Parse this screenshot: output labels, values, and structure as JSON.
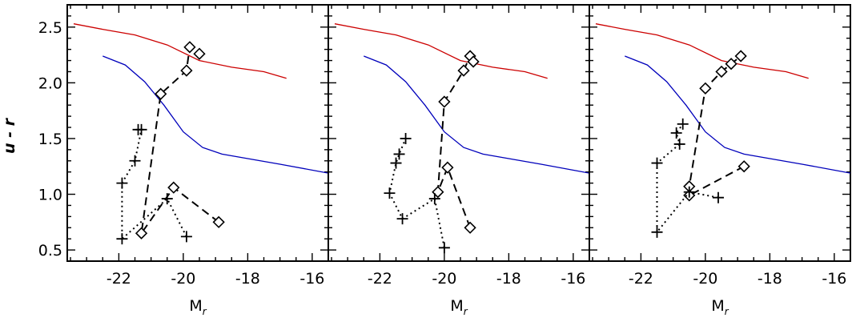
{
  "chart_data": [
    {
      "type": "line",
      "panel": "left",
      "xlabel": "M",
      "xlabel_sub": "r",
      "ylabel": "u - r",
      "xlim": [
        -23.6,
        -15.5
      ],
      "ylim": [
        0.4,
        2.7
      ],
      "xticks": [
        "-22",
        "-20",
        "-18",
        "-16"
      ],
      "xtick_values": [
        -22,
        -20,
        -18,
        -16
      ],
      "yticks": [
        "0.5",
        "1.0",
        "1.5",
        "2.0",
        "2.5"
      ],
      "ytick_values": [
        0.5,
        1.0,
        1.5,
        2.0,
        2.5
      ],
      "curves": [
        {
          "color": "#cc0000",
          "x": [
            -23.4,
            -22.5,
            -21.5,
            -20.5,
            -19.5,
            -18.5,
            -17.5,
            -16.8
          ],
          "y": [
            2.53,
            2.48,
            2.43,
            2.34,
            2.2,
            2.14,
            2.1,
            2.04
          ]
        },
        {
          "color": "#0000bb",
          "x": [
            -22.5,
            -21.8,
            -21.2,
            -20.6,
            -20.0,
            -19.4,
            -18.8,
            -18.0,
            -17.0,
            -15.5
          ],
          "y": [
            2.24,
            2.16,
            2.01,
            1.8,
            1.56,
            1.42,
            1.36,
            1.32,
            1.27,
            1.19
          ]
        }
      ],
      "series": [
        {
          "style": "dashed",
          "marker": "diamond",
          "x": [
            -18.9,
            -20.3,
            -21.3,
            -20.7,
            -19.9,
            -19.8,
            -19.5
          ],
          "y": [
            0.75,
            1.06,
            0.65,
            1.9,
            2.11,
            2.32,
            2.26
          ]
        },
        {
          "style": "dotted",
          "marker": "plus",
          "x": [
            -19.9,
            -20.5,
            -21.9,
            -21.9,
            -21.5,
            -21.3,
            -21.4
          ],
          "y": [
            0.62,
            0.96,
            0.6,
            1.1,
            1.3,
            1.58,
            1.58
          ]
        }
      ]
    },
    {
      "type": "line",
      "panel": "middle",
      "xlabel": "M",
      "xlabel_sub": "r",
      "xlim": [
        -23.6,
        -15.5
      ],
      "ylim": [
        0.4,
        2.7
      ],
      "xticks": [
        "-22",
        "-20",
        "-18",
        "-16"
      ],
      "xtick_values": [
        -22,
        -20,
        -18,
        -16
      ],
      "curves": [
        {
          "color": "#cc0000",
          "x": [
            -23.4,
            -22.5,
            -21.5,
            -20.5,
            -19.5,
            -18.5,
            -17.5,
            -16.8
          ],
          "y": [
            2.53,
            2.48,
            2.43,
            2.34,
            2.2,
            2.14,
            2.1,
            2.04
          ]
        },
        {
          "color": "#0000bb",
          "x": [
            -22.5,
            -21.8,
            -21.2,
            -20.6,
            -20.0,
            -19.4,
            -18.8,
            -18.0,
            -17.0,
            -15.5
          ],
          "y": [
            2.24,
            2.16,
            2.01,
            1.8,
            1.56,
            1.42,
            1.36,
            1.32,
            1.27,
            1.19
          ]
        }
      ],
      "series": [
        {
          "style": "dashed",
          "marker": "diamond",
          "x": [
            -19.2,
            -19.9,
            -20.2,
            -20.0,
            -19.4,
            -19.2,
            -19.1
          ],
          "y": [
            0.7,
            1.24,
            1.02,
            1.83,
            2.11,
            2.24,
            2.19
          ]
        },
        {
          "style": "dotted",
          "marker": "plus",
          "x": [
            -20.0,
            -20.3,
            -21.3,
            -21.7,
            -21.5,
            -21.4,
            -21.2
          ],
          "y": [
            0.52,
            0.96,
            0.78,
            1.01,
            1.28,
            1.36,
            1.5
          ]
        }
      ]
    },
    {
      "type": "line",
      "panel": "right",
      "xlabel": "M",
      "xlabel_sub": "r",
      "xlim": [
        -23.6,
        -15.5
      ],
      "ylim": [
        0.4,
        2.7
      ],
      "xticks": [
        "-22",
        "-20",
        "-18",
        "-16"
      ],
      "xtick_values": [
        -22,
        -20,
        -18,
        -16
      ],
      "curves": [
        {
          "color": "#cc0000",
          "x": [
            -23.4,
            -22.5,
            -21.5,
            -20.5,
            -19.5,
            -18.5,
            -17.5,
            -16.8
          ],
          "y": [
            2.53,
            2.48,
            2.43,
            2.34,
            2.2,
            2.14,
            2.1,
            2.04
          ]
        },
        {
          "color": "#0000bb",
          "x": [
            -22.5,
            -21.8,
            -21.2,
            -20.6,
            -20.0,
            -19.4,
            -18.8,
            -18.0,
            -17.0,
            -15.5
          ],
          "y": [
            2.24,
            2.16,
            2.01,
            1.8,
            1.56,
            1.42,
            1.36,
            1.32,
            1.27,
            1.19
          ]
        }
      ],
      "series": [
        {
          "style": "dashed",
          "marker": "diamond",
          "x": [
            -18.8,
            -20.5,
            -20.5,
            -20.0,
            -19.5,
            -19.2,
            -18.9
          ],
          "y": [
            1.25,
            0.99,
            1.07,
            1.95,
            2.1,
            2.17,
            2.24
          ]
        },
        {
          "style": "dotted",
          "marker": "plus",
          "x": [
            -19.6,
            -20.5,
            -21.5,
            -21.5,
            -20.8,
            -20.9,
            -20.7
          ],
          "y": [
            0.97,
            1.02,
            0.66,
            1.28,
            1.45,
            1.55,
            1.63
          ]
        }
      ]
    }
  ]
}
